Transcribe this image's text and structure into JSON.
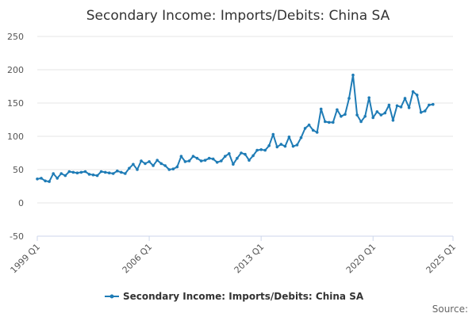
{
  "chart_data": {
    "type": "line",
    "title": "Secondary Income: Imports/Debits: China SA",
    "xlabel": "",
    "ylabel": "",
    "x_start": "1999 Q1",
    "x_end": "2025 Q1",
    "x_tick_labels": [
      "1999 Q1",
      "2006 Q1",
      "2013 Q1",
      "2020 Q1",
      "2025 Q1"
    ],
    "y_tick_labels": [
      "250",
      "200",
      "150",
      "100",
      "50",
      "0",
      "-50"
    ],
    "ylim": [
      -50,
      250
    ],
    "grid": true,
    "legend_position": "bottom-center",
    "series": [
      {
        "name": "Secondary Income: Imports/Debits: China SA",
        "color": "#1f7cb6",
        "values": [
          36,
          37,
          33,
          32,
          44,
          37,
          44,
          41,
          47,
          46,
          45,
          46,
          47,
          43,
          42,
          41,
          47,
          46,
          45,
          44,
          48,
          46,
          44,
          52,
          58,
          50,
          63,
          59,
          62,
          56,
          64,
          59,
          56,
          50,
          51,
          54,
          70,
          62,
          63,
          70,
          67,
          63,
          64,
          67,
          66,
          61,
          63,
          70,
          74,
          58,
          67,
          75,
          73,
          64,
          71,
          79,
          80,
          79,
          86,
          103,
          84,
          88,
          85,
          99,
          85,
          87,
          98,
          112,
          117,
          109,
          106,
          141,
          122,
          121,
          121,
          140,
          130,
          133,
          157,
          192,
          132,
          122,
          130,
          158,
          128,
          137,
          132,
          135,
          147,
          124,
          146,
          144,
          157,
          143,
          167,
          162,
          136,
          138,
          147,
          148
        ]
      }
    ]
  },
  "legend": {
    "label": "Secondary Income: Imports/Debits: China SA"
  },
  "source": {
    "label": "Source:"
  }
}
